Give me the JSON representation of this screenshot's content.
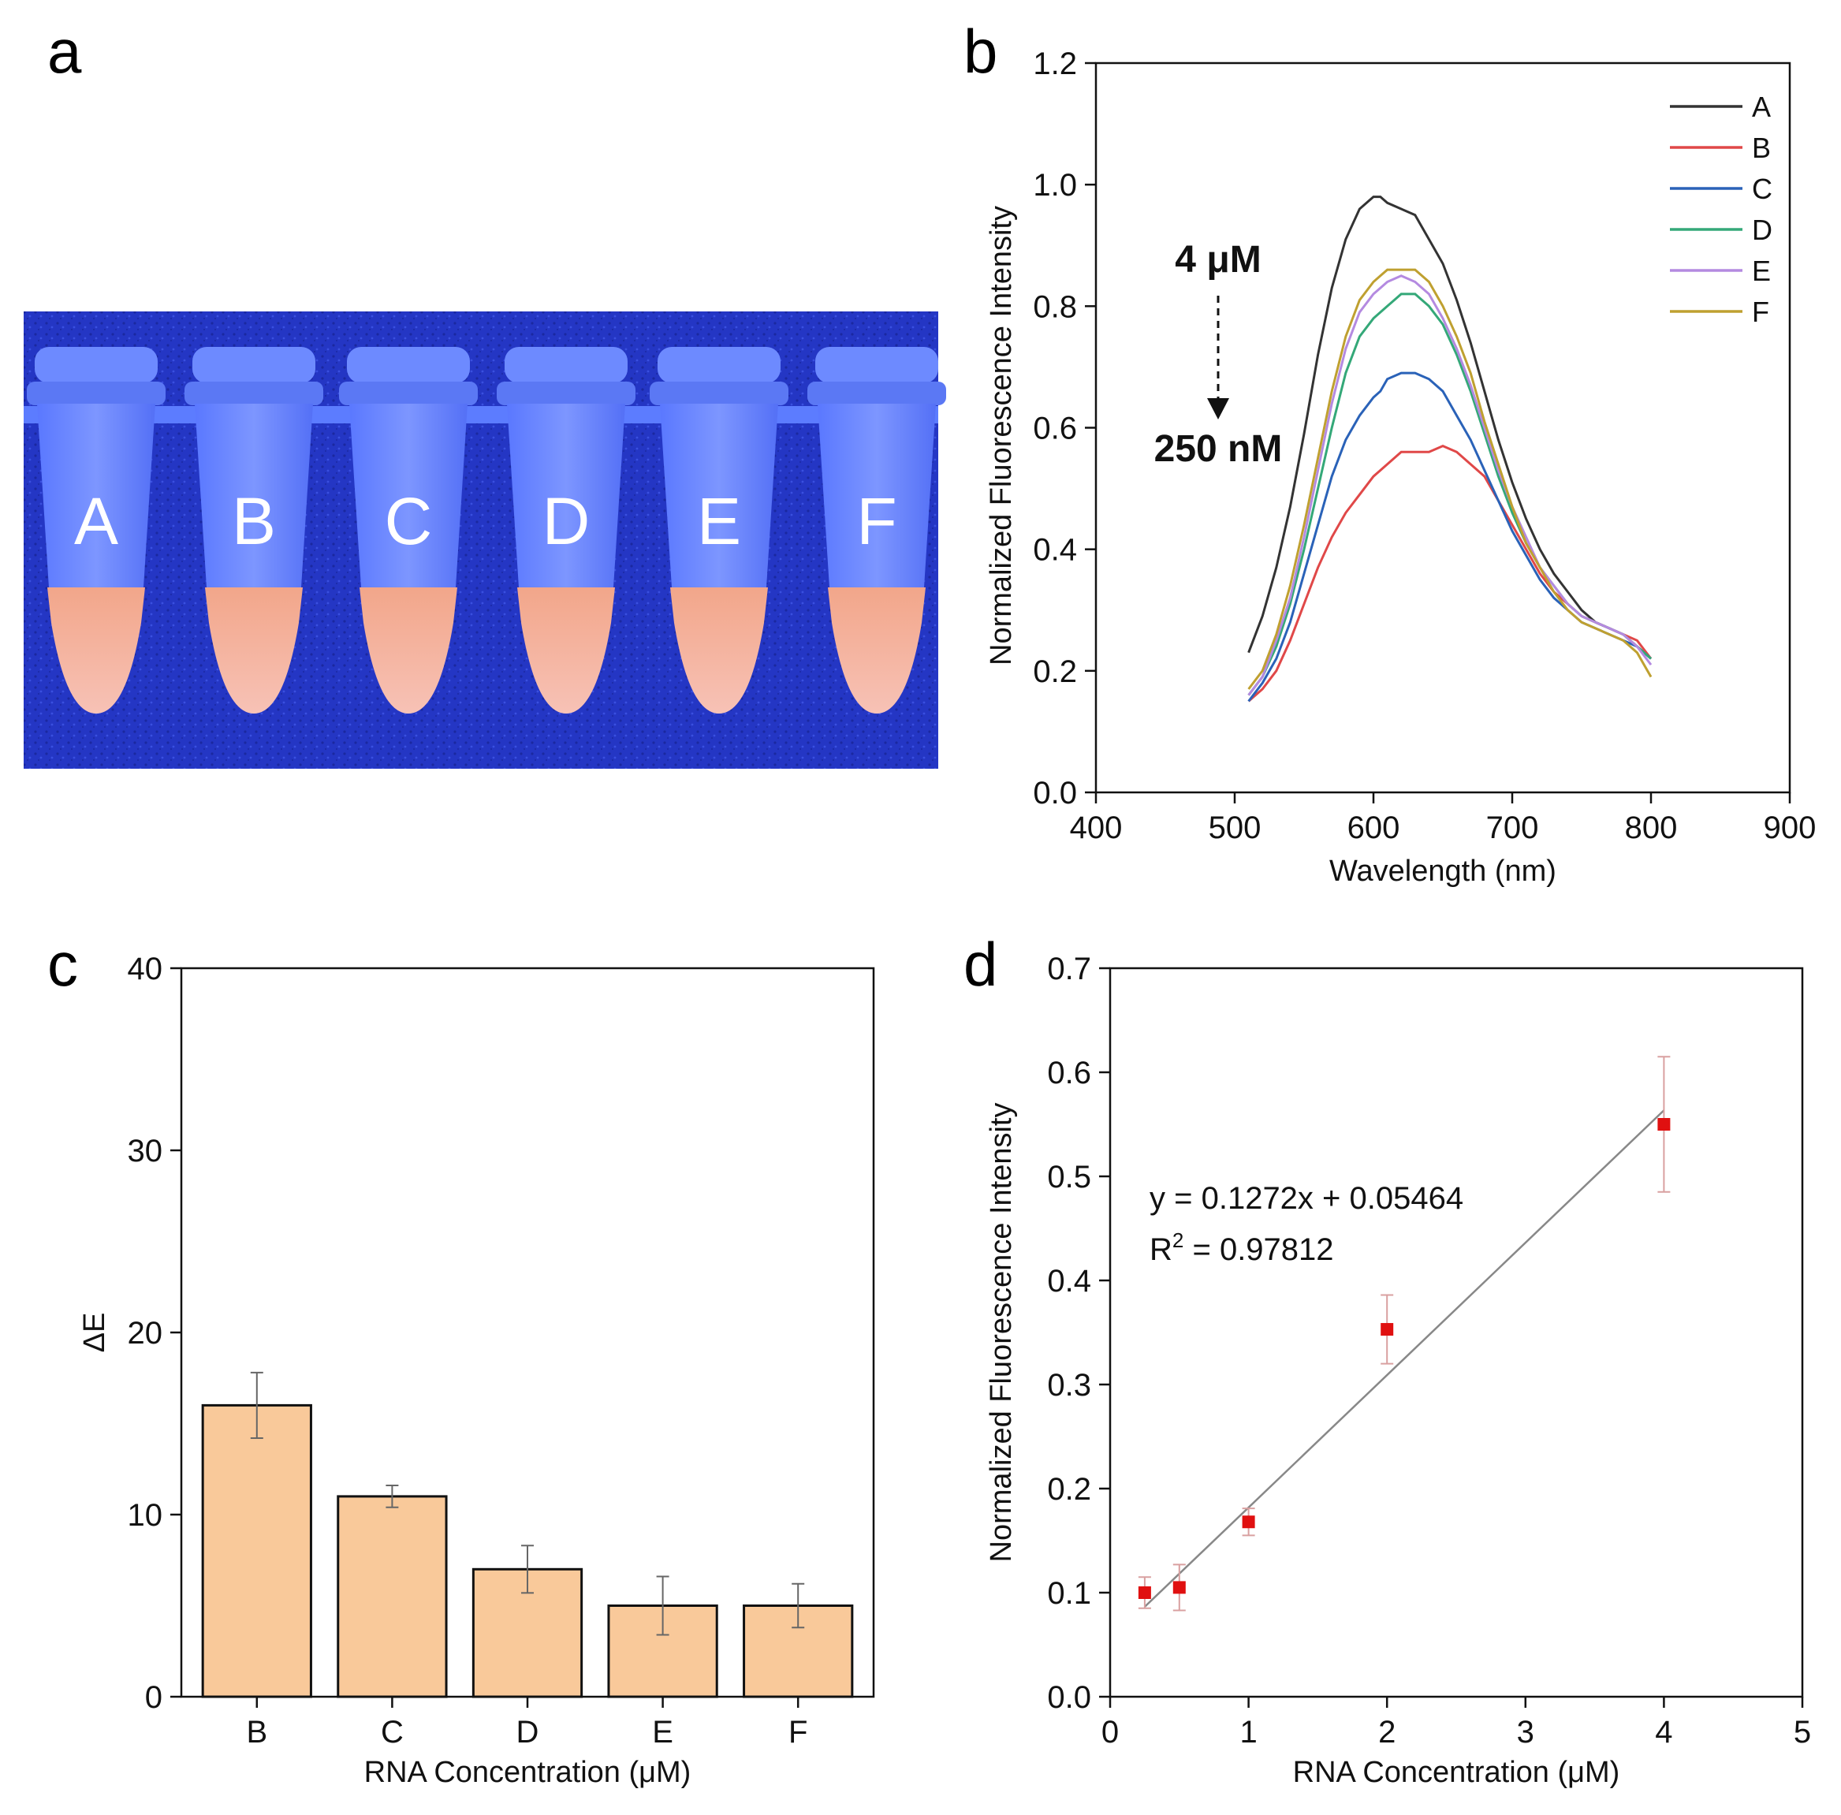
{
  "panels": {
    "a": {
      "letter": "a",
      "tube_labels": [
        "A",
        "B",
        "C",
        "D",
        "E",
        "F"
      ]
    },
    "b": {
      "letter": "b"
    },
    "c": {
      "letter": "c"
    },
    "d": {
      "letter": "d"
    }
  },
  "colors": {
    "A": "#333333",
    "B": "#e04848",
    "C": "#2a62b8",
    "D": "#34a878",
    "E": "#b48ae0",
    "F": "#bfa030",
    "bar_fill": "#f9c99a",
    "scatter": "#e01010",
    "photo_bg": "#2f45d8"
  },
  "annotations": {
    "top": "4 μM",
    "bottom": "250 nM"
  },
  "equation": {
    "line1": "y = 0.1272x + 0.05464",
    "r_label": "R",
    "r_sup": "2",
    "r_rest": " = 0.97812"
  },
  "chart_data": [
    {
      "id": "b",
      "type": "line",
      "xlabel": "Wavelength (nm)",
      "ylabel": "Normalized Fluorescence Intensity",
      "xlim": [
        400,
        900
      ],
      "ylim": [
        0.0,
        1.2
      ],
      "xticks": [
        400,
        500,
        600,
        700,
        800,
        900
      ],
      "xtick_labels": [
        "400",
        "500",
        "600",
        "700",
        "800",
        "900"
      ],
      "yticks": [
        0.0,
        0.2,
        0.4,
        0.6,
        0.8,
        1.0,
        1.2
      ],
      "ytick_labels": [
        "0.0",
        "0.2",
        "0.4",
        "0.6",
        "0.8",
        "1.0",
        "1.2"
      ],
      "legend_position": "top-right",
      "x": [
        510,
        520,
        530,
        540,
        550,
        560,
        570,
        580,
        590,
        600,
        605,
        610,
        620,
        630,
        640,
        650,
        660,
        670,
        680,
        690,
        700,
        710,
        720,
        730,
        740,
        750,
        760,
        770,
        780,
        790,
        800
      ],
      "series": [
        {
          "name": "A",
          "values": [
            0.23,
            0.29,
            0.37,
            0.47,
            0.59,
            0.72,
            0.83,
            0.91,
            0.96,
            0.98,
            0.98,
            0.97,
            0.96,
            0.95,
            0.91,
            0.87,
            0.81,
            0.74,
            0.66,
            0.58,
            0.51,
            0.45,
            0.4,
            0.36,
            0.33,
            0.3,
            0.28,
            0.27,
            0.26,
            0.24,
            0.22
          ]
        },
        {
          "name": "B",
          "values": [
            0.15,
            0.17,
            0.2,
            0.25,
            0.31,
            0.37,
            0.42,
            0.46,
            0.49,
            0.52,
            0.53,
            0.54,
            0.56,
            0.56,
            0.56,
            0.57,
            0.56,
            0.54,
            0.52,
            0.48,
            0.44,
            0.4,
            0.36,
            0.33,
            0.31,
            0.29,
            0.28,
            0.27,
            0.26,
            0.25,
            0.22
          ]
        },
        {
          "name": "C",
          "values": [
            0.15,
            0.18,
            0.22,
            0.28,
            0.36,
            0.44,
            0.52,
            0.58,
            0.62,
            0.65,
            0.66,
            0.68,
            0.69,
            0.69,
            0.68,
            0.66,
            0.62,
            0.58,
            0.53,
            0.48,
            0.43,
            0.39,
            0.35,
            0.32,
            0.3,
            0.28,
            0.27,
            0.26,
            0.25,
            0.24,
            0.22
          ]
        },
        {
          "name": "D",
          "values": [
            0.16,
            0.19,
            0.24,
            0.31,
            0.4,
            0.5,
            0.6,
            0.69,
            0.75,
            0.78,
            0.79,
            0.8,
            0.82,
            0.82,
            0.8,
            0.77,
            0.72,
            0.66,
            0.59,
            0.52,
            0.46,
            0.41,
            0.37,
            0.34,
            0.31,
            0.29,
            0.28,
            0.27,
            0.26,
            0.24,
            0.22
          ]
        },
        {
          "name": "E",
          "values": [
            0.16,
            0.19,
            0.25,
            0.32,
            0.42,
            0.53,
            0.64,
            0.73,
            0.79,
            0.82,
            0.83,
            0.84,
            0.85,
            0.84,
            0.82,
            0.78,
            0.73,
            0.67,
            0.6,
            0.53,
            0.47,
            0.42,
            0.37,
            0.34,
            0.31,
            0.29,
            0.28,
            0.27,
            0.26,
            0.24,
            0.21
          ]
        },
        {
          "name": "F",
          "values": [
            0.17,
            0.2,
            0.26,
            0.34,
            0.44,
            0.55,
            0.66,
            0.75,
            0.81,
            0.84,
            0.85,
            0.86,
            0.86,
            0.86,
            0.84,
            0.8,
            0.75,
            0.69,
            0.61,
            0.54,
            0.47,
            0.41,
            0.37,
            0.33,
            0.3,
            0.28,
            0.27,
            0.26,
            0.25,
            0.23,
            0.19
          ]
        }
      ]
    },
    {
      "id": "c",
      "type": "bar",
      "xlabel": "RNA Concentration (μM)",
      "ylabel": "ΔE",
      "ylim": [
        0,
        40
      ],
      "yticks": [
        0,
        10,
        20,
        30,
        40
      ],
      "ytick_labels": [
        "0",
        "10",
        "20",
        "30",
        "40"
      ],
      "categories": [
        "B",
        "C",
        "D",
        "E",
        "F"
      ],
      "values": [
        16,
        11,
        7,
        5,
        5
      ],
      "errors": [
        1.8,
        0.6,
        1.3,
        1.6,
        1.2
      ]
    },
    {
      "id": "d",
      "type": "scatter",
      "xlabel": "RNA Concentration (μM)",
      "ylabel": "Normalized Fluorescence Intensity",
      "xlim": [
        0,
        5
      ],
      "ylim": [
        0.0,
        0.7
      ],
      "xticks": [
        0,
        1,
        2,
        3,
        4,
        5
      ],
      "xtick_labels": [
        "0",
        "1",
        "2",
        "3",
        "4",
        "5"
      ],
      "yticks": [
        0.0,
        0.1,
        0.2,
        0.3,
        0.4,
        0.5,
        0.6,
        0.7
      ],
      "ytick_labels": [
        "0.0",
        "0.1",
        "0.2",
        "0.3",
        "0.4",
        "0.5",
        "0.6",
        "0.7"
      ],
      "x": [
        0.25,
        0.5,
        1,
        2,
        4
      ],
      "y": [
        0.1,
        0.105,
        0.168,
        0.353,
        0.55
      ],
      "errors": [
        0.015,
        0.022,
        0.013,
        0.033,
        0.065
      ],
      "fit": {
        "slope": 0.1272,
        "intercept": 0.05464,
        "x_range": [
          0.25,
          4
        ]
      }
    }
  ]
}
